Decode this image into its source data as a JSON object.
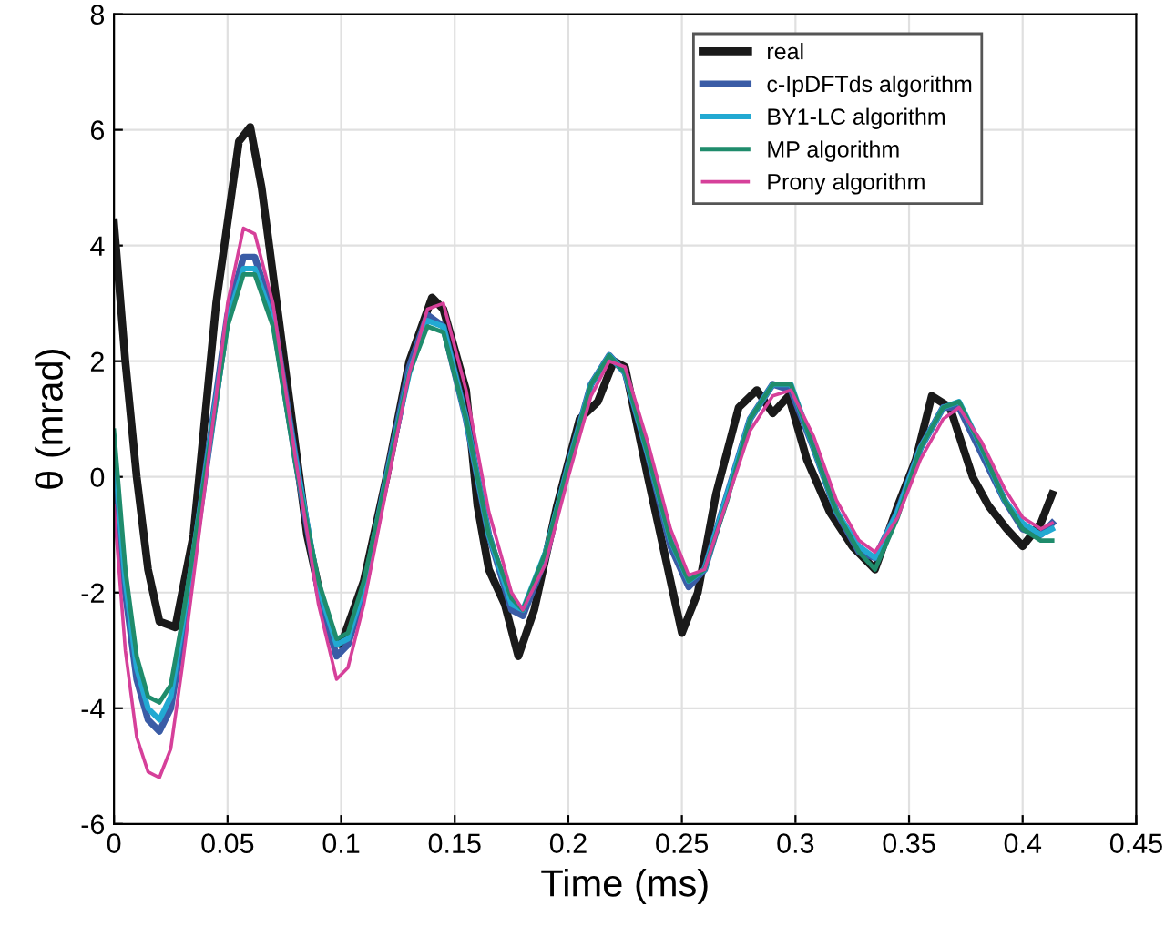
{
  "chart_data": {
    "type": "line",
    "xlabel": "Time (ms)",
    "ylabel": "θ (mrad)",
    "xlim": [
      0,
      0.45
    ],
    "ylim": [
      -6,
      8
    ],
    "xticks": [
      0,
      0.05,
      0.1,
      0.15,
      0.2,
      0.25,
      0.3,
      0.35,
      0.4,
      0.45
    ],
    "yticks": [
      -6,
      -4,
      -2,
      0,
      2,
      4,
      6,
      8
    ],
    "grid": true,
    "legend": "top right",
    "line_style": "solid",
    "marker": "none",
    "x": [
      0,
      0.005,
      0.01,
      0.015,
      0.02,
      0.025,
      0.03,
      0.04,
      0.05,
      0.057,
      0.062,
      0.07,
      0.08,
      0.09,
      0.098,
      0.103,
      0.11,
      0.12,
      0.13,
      0.138,
      0.145,
      0.155,
      0.165,
      0.175,
      0.18,
      0.19,
      0.2,
      0.21,
      0.218,
      0.225,
      0.235,
      0.245,
      0.253,
      0.26,
      0.27,
      0.28,
      0.29,
      0.298,
      0.308,
      0.318,
      0.328,
      0.335,
      0.345,
      0.355,
      0.365,
      0.372,
      0.382,
      0.392,
      0.4,
      0.408,
      0.413
    ],
    "series": [
      {
        "name": "real",
        "color": "#1a1a1a",
        "x": [
          0,
          0.005,
          0.01,
          0.015,
          0.02,
          0.027,
          0.035,
          0.045,
          0.055,
          0.06,
          0.065,
          0.075,
          0.085,
          0.095,
          0.1,
          0.11,
          0.12,
          0.13,
          0.14,
          0.145,
          0.155,
          0.16,
          0.165,
          0.172,
          0.178,
          0.185,
          0.195,
          0.205,
          0.213,
          0.22,
          0.225,
          0.235,
          0.245,
          0.25,
          0.257,
          0.265,
          0.275,
          0.283,
          0.29,
          0.297,
          0.305,
          0.315,
          0.325,
          0.335,
          0.345,
          0.353,
          0.36,
          0.368,
          0.378,
          0.385,
          0.393,
          0.4,
          0.408,
          0.413
        ],
        "values": [
          4.4,
          2,
          0,
          -1.6,
          -2.5,
          -2.6,
          -1,
          3,
          5.8,
          6.05,
          5,
          2,
          -1,
          -2.8,
          -2.9,
          -1.8,
          0,
          2,
          3.1,
          2.9,
          1.5,
          -0.5,
          -1.6,
          -2.2,
          -3.1,
          -2.3,
          -0.5,
          1,
          1.3,
          2,
          1.9,
          0,
          -1.8,
          -2.7,
          -2,
          -0.3,
          1.2,
          1.5,
          1.1,
          1.4,
          0.3,
          -0.6,
          -1.2,
          -1.6,
          -0.5,
          0.3,
          1.4,
          1.2,
          0,
          -0.5,
          -0.9,
          -1.2,
          -0.8,
          -0.3
        ]
      },
      {
        "name": "c-IpDFTds algorithm",
        "color": "#3a5ca6",
        "values": [
          0.3,
          -2,
          -3.5,
          -4.2,
          -4.4,
          -4,
          -2.8,
          0,
          2.8,
          3.8,
          3.8,
          2.8,
          0.3,
          -2,
          -3.1,
          -2.9,
          -2,
          0,
          1.9,
          2.8,
          2.6,
          1,
          -1,
          -2.3,
          -2.4,
          -1.4,
          0.2,
          1.6,
          2.1,
          1.8,
          0.4,
          -1.2,
          -1.9,
          -1.6,
          -0.3,
          1,
          1.6,
          1.5,
          0.5,
          -0.6,
          -1.3,
          -1.4,
          -0.6,
          0.5,
          1.2,
          1.2,
          0.4,
          -0.4,
          -0.9,
          -1,
          -0.8
        ]
      },
      {
        "name": "BY1-LC algorithm",
        "color": "#22a9d2",
        "values": [
          0.5,
          -1.8,
          -3.3,
          -4,
          -4.2,
          -3.8,
          -2.6,
          0,
          2.7,
          3.6,
          3.6,
          2.7,
          0.3,
          -1.9,
          -2.9,
          -2.8,
          -1.9,
          0,
          1.8,
          2.7,
          2.6,
          1,
          -1,
          -2.2,
          -2.3,
          -1.3,
          0.2,
          1.6,
          2.1,
          1.8,
          0.4,
          -1.1,
          -1.8,
          -1.6,
          -0.3,
          1,
          1.6,
          1.6,
          0.5,
          -0.6,
          -1.2,
          -1.4,
          -0.6,
          0.5,
          1.2,
          1.3,
          0.5,
          -0.4,
          -0.8,
          -1,
          -0.9
        ]
      },
      {
        "name": "MP algorithm",
        "color": "#1f8c6c",
        "values": [
          0.8,
          -1.6,
          -3.1,
          -3.8,
          -3.9,
          -3.6,
          -2.5,
          0,
          2.6,
          3.5,
          3.5,
          2.6,
          0.2,
          -1.8,
          -2.8,
          -2.7,
          -1.8,
          0,
          1.8,
          2.6,
          2.5,
          1,
          -1,
          -2.1,
          -2.3,
          -1.3,
          0.2,
          1.6,
          2.1,
          1.8,
          0.4,
          -1.1,
          -1.8,
          -1.6,
          -0.4,
          1,
          1.6,
          1.6,
          0.5,
          -0.6,
          -1.3,
          -1.6,
          -0.7,
          0.5,
          1.2,
          1.3,
          0.5,
          -0.4,
          -0.9,
          -1.1,
          -1.1
        ]
      },
      {
        "name": "Prony algorithm",
        "color": "#d6409a",
        "values": [
          -0.5,
          -3,
          -4.5,
          -5.1,
          -5.2,
          -4.7,
          -3.3,
          -0.2,
          3,
          4.3,
          4.2,
          3,
          0.3,
          -2.2,
          -3.5,
          -3.3,
          -2.2,
          -0.2,
          1.8,
          2.9,
          3,
          1.5,
          -0.6,
          -2,
          -2.3,
          -1.5,
          0,
          1.4,
          2,
          1.9,
          0.6,
          -0.9,
          -1.7,
          -1.6,
          -0.4,
          0.8,
          1.4,
          1.5,
          0.7,
          -0.4,
          -1.1,
          -1.3,
          -0.7,
          0.3,
          1,
          1.2,
          0.6,
          -0.2,
          -0.7,
          -0.9,
          -0.8
        ]
      }
    ]
  }
}
